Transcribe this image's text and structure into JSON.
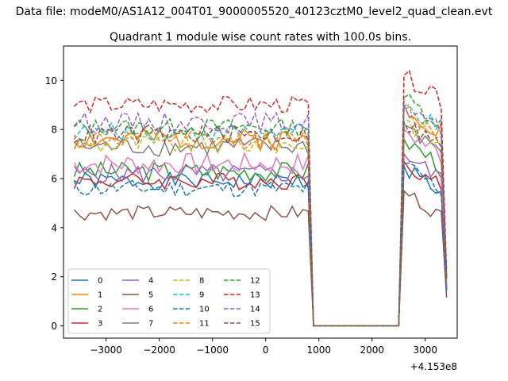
{
  "figure": {
    "suptitle": "Data file: modeM0/AS1A12_004T01_9000005520_40123cztM0_level2_quad_clean.evt",
    "offset_label": "+4.153e8"
  },
  "colors": [
    "#1f77b4",
    "#ff7f0e",
    "#2ca02c",
    "#d62728",
    "#9467bd",
    "#8c564b",
    "#e377c2",
    "#7f7f7f",
    "#bcbd22",
    "#17becf",
    "#1f77b4",
    "#ff7f0e",
    "#2ca02c",
    "#d62728",
    "#9467bd",
    "#8c564b"
  ],
  "chart_data": {
    "type": "line",
    "title": "Quadrant 1 module wise count rates with 100.0s bins.",
    "xlabel": "",
    "ylabel": "",
    "xlim": [
      -3800,
      3600
    ],
    "ylim": [
      -0.5,
      11.4
    ],
    "xticks": [
      -3000,
      -2000,
      -1000,
      0,
      1000,
      2000,
      3000
    ],
    "xtick_labels": [
      "−3000",
      "−2000",
      "−1000",
      "0",
      "1000",
      "2000",
      "3000"
    ],
    "yticks": [
      0,
      2,
      4,
      6,
      8,
      10
    ],
    "ytick_labels": [
      "0",
      "2",
      "4",
      "6",
      "8",
      "10"
    ],
    "x_offset": 415300000,
    "grid": false,
    "legend": {
      "placement": "lower-left",
      "columns": 4
    },
    "x_segments": {
      "active1": [
        -3600,
        800
      ],
      "gap": [
        900,
        2500
      ],
      "active2": [
        2600,
        3400
      ]
    },
    "series": [
      {
        "name": "0",
        "style": "solid",
        "base": 5.9,
        "amp": 0.35,
        "peak": 6.5,
        "seed": 1
      },
      {
        "name": "1",
        "style": "solid",
        "base": 7.6,
        "amp": 0.45,
        "peak": 9.0,
        "seed": 2
      },
      {
        "name": "2",
        "style": "solid",
        "base": 6.3,
        "amp": 0.4,
        "peak": 7.6,
        "seed": 3
      },
      {
        "name": "3",
        "style": "solid",
        "base": 5.9,
        "amp": 0.35,
        "peak": 6.7,
        "seed": 4
      },
      {
        "name": "4",
        "style": "solid",
        "base": 6.2,
        "amp": 0.4,
        "peak": 7.0,
        "seed": 5
      },
      {
        "name": "5",
        "style": "solid",
        "base": 4.6,
        "amp": 0.3,
        "peak": 5.5,
        "seed": 6
      },
      {
        "name": "6",
        "style": "solid",
        "base": 6.6,
        "amp": 0.45,
        "peak": 8.0,
        "seed": 7
      },
      {
        "name": "7",
        "style": "solid",
        "base": 7.3,
        "amp": 0.4,
        "peak": 8.2,
        "seed": 8
      },
      {
        "name": "8",
        "style": "dashed",
        "base": 7.4,
        "amp": 0.4,
        "peak": 8.4,
        "seed": 9
      },
      {
        "name": "9",
        "style": "dashed",
        "base": 7.9,
        "amp": 0.35,
        "peak": 9.0,
        "seed": 10
      },
      {
        "name": "10",
        "style": "dashed",
        "base": 5.6,
        "amp": 0.35,
        "peak": 6.6,
        "seed": 11
      },
      {
        "name": "11",
        "style": "dashed",
        "base": 7.6,
        "amp": 0.4,
        "peak": 8.8,
        "seed": 12
      },
      {
        "name": "12",
        "style": "dashed",
        "base": 8.1,
        "amp": 0.35,
        "peak": 9.3,
        "seed": 13
      },
      {
        "name": "13",
        "style": "dashed",
        "base": 9.0,
        "amp": 0.35,
        "peak": 10.2,
        "seed": 14
      },
      {
        "name": "14",
        "style": "dashed",
        "base": 8.3,
        "amp": 0.4,
        "peak": 9.0,
        "seed": 15
      },
      {
        "name": "15",
        "style": "dashed",
        "base": 7.8,
        "amp": 0.4,
        "peak": 8.3,
        "seed": 16
      }
    ]
  }
}
